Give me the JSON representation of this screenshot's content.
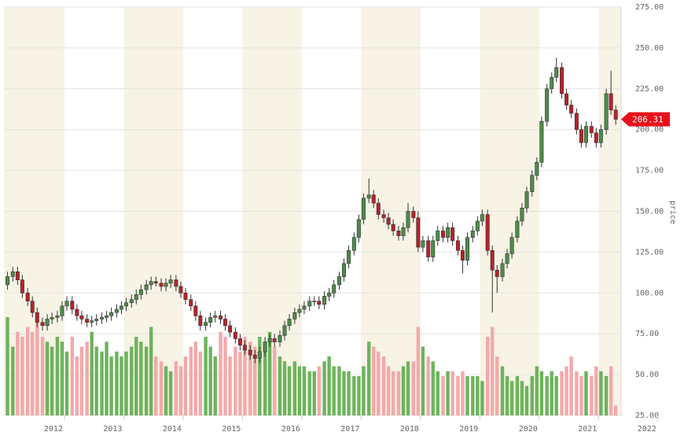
{
  "chart_data": {
    "type": "candlestick",
    "y_label": "price",
    "x": [
      2011.04,
      2011.13,
      2011.21,
      2011.29,
      2011.38,
      2011.46,
      2011.54,
      2011.63,
      2011.71,
      2011.79,
      2011.88,
      2011.96,
      2012.04,
      2012.13,
      2012.21,
      2012.29,
      2012.38,
      2012.46,
      2012.54,
      2012.63,
      2012.71,
      2012.79,
      2012.88,
      2012.96,
      2013.04,
      2013.13,
      2013.21,
      2013.29,
      2013.38,
      2013.46,
      2013.54,
      2013.63,
      2013.71,
      2013.79,
      2013.88,
      2013.96,
      2014.04,
      2014.13,
      2014.21,
      2014.29,
      2014.38,
      2014.46,
      2014.54,
      2014.63,
      2014.71,
      2014.79,
      2014.88,
      2014.96,
      2015.04,
      2015.13,
      2015.21,
      2015.29,
      2015.38,
      2015.46,
      2015.54,
      2015.63,
      2015.71,
      2015.79,
      2015.88,
      2015.96,
      2016.04,
      2016.13,
      2016.21,
      2016.29,
      2016.38,
      2016.46,
      2016.54,
      2016.63,
      2016.71,
      2016.79,
      2016.88,
      2016.96,
      2017.04,
      2017.13,
      2017.21,
      2017.29,
      2017.38,
      2017.46,
      2017.54,
      2017.63,
      2017.71,
      2017.79,
      2017.88,
      2017.96,
      2018.04,
      2018.13,
      2018.21,
      2018.29,
      2018.38,
      2018.46,
      2018.54,
      2018.63,
      2018.71,
      2018.79,
      2018.88,
      2018.96,
      2019.04,
      2019.13,
      2019.21,
      2019.29,
      2019.38,
      2019.46,
      2019.54,
      2019.63,
      2019.71,
      2019.79,
      2019.88,
      2019.96,
      2020.04,
      2020.13,
      2020.21,
      2020.29,
      2020.38,
      2020.46,
      2020.54,
      2020.63,
      2020.71,
      2020.79,
      2020.88,
      2020.96,
      2021.04,
      2021.13,
      2021.21,
      2021.29
    ],
    "open": [
      105,
      110,
      113,
      108,
      100,
      95,
      88,
      82,
      80,
      84,
      85,
      86,
      92,
      95,
      90,
      86,
      84,
      82,
      83,
      84,
      85,
      86,
      88,
      90,
      92,
      94,
      96,
      99,
      102,
      105,
      107,
      106,
      104,
      106,
      108,
      104,
      100,
      96,
      92,
      86,
      80,
      82,
      85,
      86,
      84,
      80,
      76,
      72,
      68,
      65,
      62,
      60,
      64,
      70,
      72,
      70,
      74,
      80,
      84,
      88,
      90,
      92,
      95,
      95,
      93,
      98,
      100,
      105,
      110,
      118,
      126,
      134,
      145,
      158,
      160,
      155,
      148,
      146,
      142,
      138,
      135,
      140,
      150,
      146,
      128,
      132,
      122,
      132,
      138,
      134,
      140,
      132,
      126,
      120,
      134,
      138,
      144,
      148,
      126,
      114,
      110,
      118,
      124,
      134,
      144,
      152,
      162,
      172,
      180,
      205,
      225,
      232,
      238,
      222,
      215,
      210,
      200,
      192,
      202,
      198,
      192,
      200,
      222,
      212
    ],
    "high": [
      113,
      116,
      116,
      111,
      103,
      98,
      91,
      85,
      87,
      88,
      89,
      95,
      98,
      98,
      93,
      89,
      87,
      86,
      87,
      88,
      89,
      91,
      93,
      95,
      97,
      99,
      102,
      105,
      108,
      110,
      110,
      109,
      109,
      111,
      111,
      107,
      103,
      99,
      95,
      89,
      85,
      88,
      89,
      89,
      87,
      83,
      79,
      75,
      71,
      68,
      65,
      67,
      73,
      75,
      75,
      77,
      83,
      87,
      91,
      93,
      95,
      98,
      98,
      98,
      101,
      103,
      108,
      113,
      121,
      129,
      137,
      148,
      161,
      170,
      163,
      158,
      151,
      149,
      145,
      141,
      143,
      155,
      153,
      150,
      135,
      135,
      135,
      141,
      141,
      143,
      143,
      135,
      129,
      137,
      141,
      147,
      151,
      151,
      129,
      117,
      121,
      127,
      137,
      147,
      155,
      165,
      175,
      183,
      208,
      228,
      235,
      244,
      241,
      225,
      218,
      213,
      203,
      205,
      205,
      201,
      203,
      225,
      236,
      215
    ],
    "low": [
      102,
      107,
      105,
      97,
      92,
      85,
      79,
      77,
      77,
      81,
      82,
      83,
      89,
      87,
      83,
      81,
      79,
      79,
      80,
      81,
      82,
      83,
      85,
      87,
      89,
      91,
      93,
      96,
      99,
      102,
      104,
      101,
      101,
      103,
      101,
      97,
      93,
      89,
      83,
      77,
      77,
      79,
      82,
      81,
      77,
      73,
      69,
      65,
      62,
      59,
      57,
      57,
      61,
      67,
      67,
      67,
      71,
      77,
      81,
      85,
      87,
      89,
      92,
      90,
      90,
      95,
      97,
      102,
      107,
      115,
      123,
      131,
      142,
      155,
      152,
      145,
      143,
      139,
      135,
      132,
      132,
      137,
      143,
      125,
      125,
      119,
      119,
      129,
      131,
      131,
      129,
      123,
      112,
      117,
      131,
      135,
      141,
      123,
      88,
      100,
      107,
      115,
      121,
      131,
      141,
      149,
      159,
      169,
      177,
      202,
      222,
      229,
      219,
      212,
      207,
      197,
      189,
      189,
      195,
      189,
      189,
      197,
      209,
      203
    ],
    "close": [
      110,
      113,
      108,
      100,
      95,
      88,
      82,
      80,
      84,
      85,
      86,
      92,
      95,
      90,
      86,
      84,
      82,
      83,
      84,
      85,
      86,
      88,
      90,
      92,
      94,
      96,
      99,
      102,
      105,
      107,
      106,
      104,
      106,
      108,
      104,
      100,
      96,
      92,
      86,
      80,
      82,
      85,
      86,
      84,
      80,
      76,
      72,
      68,
      65,
      62,
      60,
      64,
      70,
      72,
      70,
      74,
      80,
      84,
      88,
      90,
      92,
      95,
      95,
      93,
      98,
      100,
      105,
      110,
      118,
      126,
      134,
      145,
      158,
      160,
      155,
      148,
      146,
      142,
      138,
      135,
      140,
      150,
      146,
      128,
      132,
      122,
      132,
      138,
      134,
      140,
      132,
      126,
      120,
      134,
      138,
      144,
      148,
      126,
      114,
      110,
      118,
      124,
      134,
      144,
      152,
      162,
      172,
      180,
      205,
      225,
      232,
      238,
      222,
      215,
      210,
      200,
      192,
      202,
      198,
      192,
      200,
      222,
      212,
      206.31
    ],
    "volume": [
      100,
      70,
      85,
      80,
      90,
      85,
      95,
      80,
      75,
      70,
      80,
      75,
      65,
      80,
      60,
      70,
      75,
      85,
      70,
      65,
      75,
      60,
      65,
      60,
      65,
      70,
      80,
      75,
      70,
      90,
      60,
      55,
      50,
      45,
      55,
      50,
      60,
      70,
      75,
      65,
      80,
      70,
      60,
      85,
      80,
      60,
      70,
      65,
      80,
      75,
      70,
      80,
      75,
      85,
      70,
      60,
      55,
      50,
      55,
      50,
      50,
      45,
      45,
      50,
      55,
      60,
      50,
      50,
      45,
      45,
      40,
      40,
      50,
      75,
      70,
      65,
      60,
      50,
      45,
      45,
      50,
      55,
      55,
      90,
      70,
      60,
      55,
      45,
      40,
      45,
      45,
      40,
      45,
      40,
      40,
      40,
      35,
      80,
      90,
      60,
      50,
      40,
      35,
      40,
      35,
      30,
      40,
      50,
      45,
      40,
      45,
      40,
      45,
      50,
      60,
      45,
      40,
      45,
      40,
      50,
      45,
      40,
      50,
      10
    ],
    "xlim": [
      2010.98,
      2021.38
    ],
    "xticks": [
      2012,
      2013,
      2014,
      2015,
      2016,
      2017,
      2018,
      2019,
      2020,
      2021,
      2022
    ],
    "ylim": [
      25,
      275
    ],
    "yticks": [
      {
        "value": 25,
        "label": "25.00"
      },
      {
        "value": 50,
        "label": "50.00"
      },
      {
        "value": 75,
        "label": "75.00"
      },
      {
        "value": 100,
        "label": "100.00"
      },
      {
        "value": 125,
        "label": "125.00"
      },
      {
        "value": 150,
        "label": "150.00"
      },
      {
        "value": 175,
        "label": "175.00"
      },
      {
        "value": 200,
        "label": "200.00"
      },
      {
        "value": 225,
        "label": "225.00"
      },
      {
        "value": 250,
        "label": "250.00"
      },
      {
        "value": 275,
        "label": "275.00"
      }
    ],
    "grid": true,
    "up_color": "#4c8c48",
    "down_color": "#b8222a",
    "volume_up_color": "#6db35c",
    "volume_down_color": "#f3a9ab",
    "band_color": "#f7f3e5"
  }
}
